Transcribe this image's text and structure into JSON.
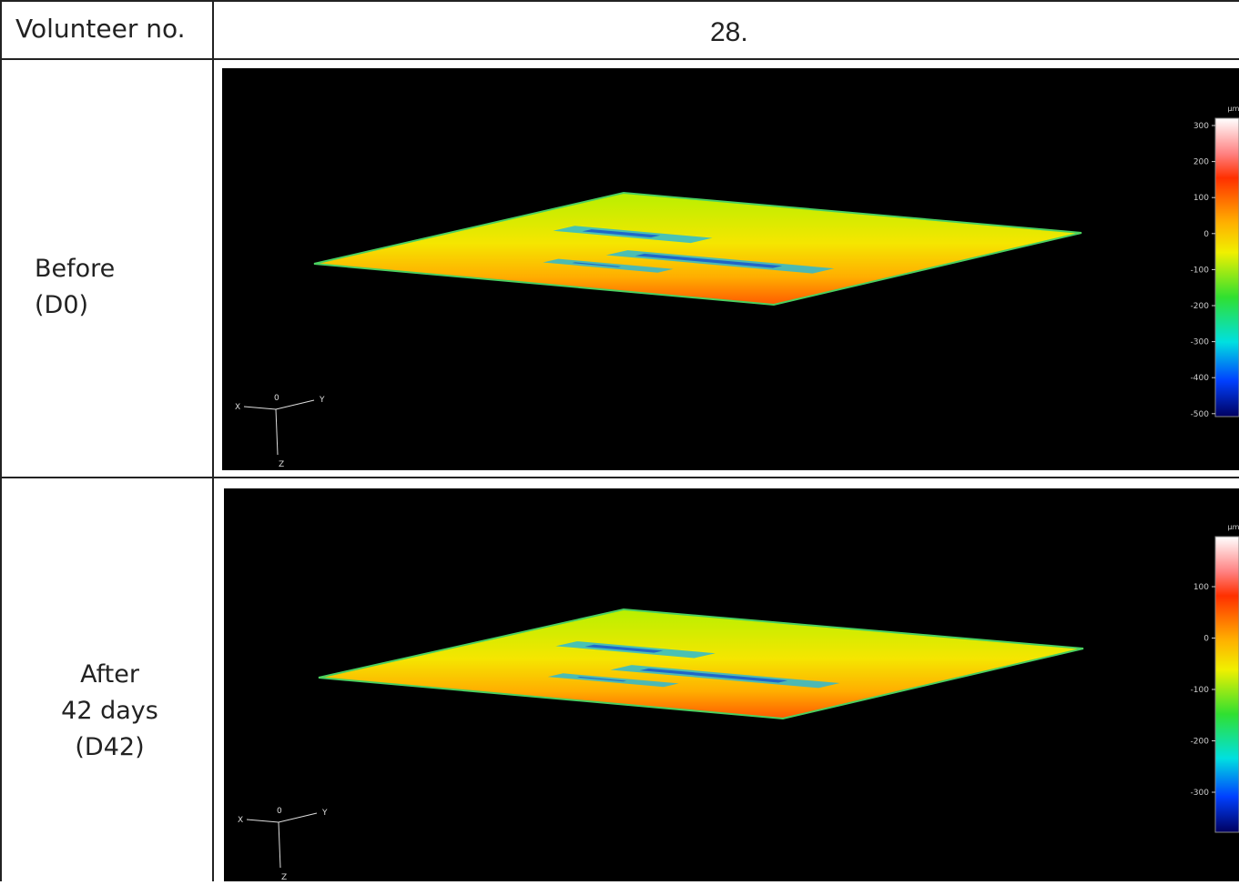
{
  "table": {
    "header": [
      "Volunteer no.",
      "28."
    ],
    "rows": [
      {
        "label": [
          "Before",
          "(D0)"
        ],
        "image": {
          "unit": "µm",
          "colorbar_ticks": [
            300,
            200,
            100,
            0,
            -100,
            -200,
            -300,
            -400,
            -500
          ],
          "axes": [
            "X",
            "0",
            "Y",
            "Z"
          ]
        }
      },
      {
        "label": [
          "After",
          "42 days",
          "(D42)"
        ],
        "image": {
          "unit": "µm",
          "colorbar_ticks": [
            100,
            0,
            -100,
            -200,
            -300
          ],
          "axes": [
            "X",
            "0",
            "Y",
            "Z"
          ]
        }
      }
    ]
  }
}
